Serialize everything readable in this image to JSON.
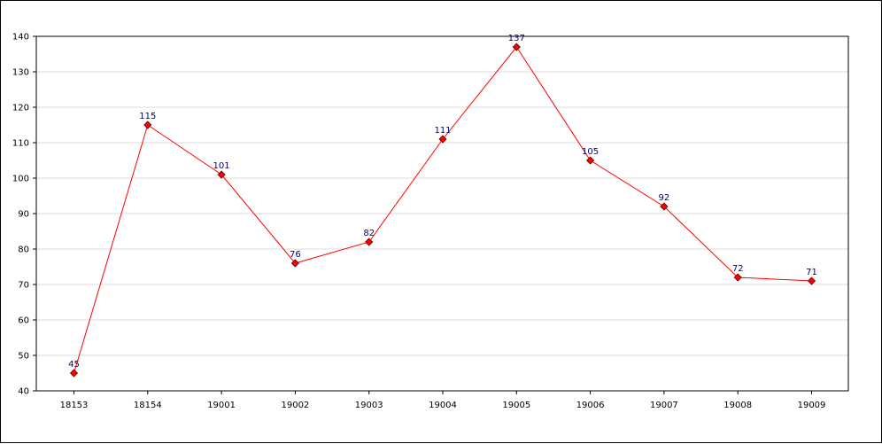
{
  "chart_data": {
    "type": "line",
    "title": "",
    "xlabel": "",
    "ylabel": "",
    "categories": [
      "18153",
      "18154",
      "19001",
      "19002",
      "19003",
      "19004",
      "19005",
      "19006",
      "19007",
      "19008",
      "19009"
    ],
    "series": [
      {
        "values": [
          45,
          115,
          101,
          76,
          82,
          111,
          137,
          105,
          92,
          72,
          71
        ],
        "color": "#ff0000",
        "marker": "diamond",
        "marker_color": "#ff0000"
      }
    ],
    "ylim": [
      40,
      140
    ],
    "yticks": [
      40,
      50,
      60,
      70,
      80,
      90,
      100,
      110,
      120,
      130,
      140
    ],
    "data_labels": true,
    "grid": "horizontal",
    "legend": "none",
    "colors": {
      "grid": "#dddddd",
      "axis": "#000000",
      "data_label": "#000080",
      "background": "#ffffff"
    }
  }
}
